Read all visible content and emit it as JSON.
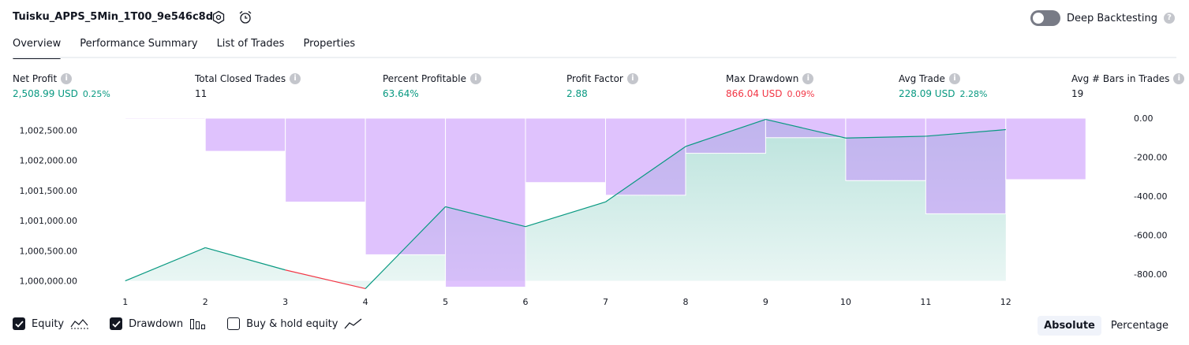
{
  "header": {
    "strategy_title": "Tuisku_APPS_5Min_1T00_9e546c8d",
    "settings_icon": "gear-icon",
    "alert_icon": "alarm-clock-plus-icon",
    "deep_backtesting_label": "Deep Backtesting",
    "deep_backtesting_enabled": false,
    "help_icon": "question-icon"
  },
  "tabs": [
    {
      "label": "Overview",
      "active": true
    },
    {
      "label": "Performance Summary",
      "active": false
    },
    {
      "label": "List of Trades",
      "active": false
    },
    {
      "label": "Properties",
      "active": false
    }
  ],
  "metrics": [
    {
      "label": "Net Profit",
      "value": "2,508.99 USD",
      "percent": "0.25%",
      "color": "#089981"
    },
    {
      "label": "Total Closed Trades",
      "value": "11",
      "percent": "",
      "color": "#131722"
    },
    {
      "label": "Percent Profitable",
      "value": "63.64%",
      "percent": "",
      "color": "#089981"
    },
    {
      "label": "Profit Factor",
      "value": "2.88",
      "percent": "",
      "color": "#089981"
    },
    {
      "label": "Max Drawdown",
      "value": "866.04 USD",
      "percent": "0.09%",
      "color": "#f23645"
    },
    {
      "label": "Avg Trade",
      "value": "228.09 USD",
      "percent": "2.28%",
      "color": "#089981"
    },
    {
      "label": "Avg # Bars in Trades",
      "value": "19",
      "percent": "",
      "color": "#131722"
    }
  ],
  "chart_data": {
    "type": "line",
    "x": [
      1,
      2,
      3,
      4,
      5,
      6,
      7,
      8,
      9,
      10,
      11,
      12
    ],
    "series": [
      {
        "name": "Equity",
        "axis": "left",
        "type": "area",
        "values": [
          1000000,
          1000550,
          1000180,
          999870,
          1001230,
          1000900,
          1001310,
          1002230,
          1002680,
          1002370,
          1002400,
          1002510
        ],
        "color": "#089981",
        "negative_color": "#f23645"
      },
      {
        "name": "Drawdown",
        "axis": "right",
        "type": "bar",
        "bar_x": [
          1.5,
          2.5,
          3.5,
          4.5,
          5.5,
          6.5,
          7.5,
          8.5,
          9.5,
          10.5,
          11.5,
          12.5
        ],
        "values": [
          -5,
          -170,
          -430,
          -700,
          -866,
          -330,
          -395,
          -180,
          -100,
          -320,
          -490,
          -315
        ],
        "color": "#c590fc"
      }
    ],
    "left_axis": {
      "ticks": [
        "1,000,000.00",
        "1,000,500.00",
        "1,001,000.00",
        "1,001,500.00",
        "1,002,000.00",
        "1,002,500.00"
      ],
      "tick_values": [
        1000000,
        1000500,
        1001000,
        1001500,
        1002000,
        1002500
      ],
      "ylim": [
        999850,
        1002700
      ]
    },
    "right_axis": {
      "ticks": [
        "0.00",
        "-200.00",
        "-400.00",
        "-600.00",
        "-800.00"
      ],
      "tick_values": [
        0,
        -200,
        -400,
        -600,
        -800
      ],
      "ylim": [
        -880,
        0
      ]
    },
    "xlim": [
      0.5,
      13.5
    ],
    "grid": false
  },
  "legend": {
    "items": [
      {
        "label": "Equity",
        "checked": true,
        "icon": "equity-line-icon"
      },
      {
        "label": "Drawdown",
        "checked": true,
        "icon": "drawdown-bars-icon"
      },
      {
        "label": "Buy & hold equity",
        "checked": false,
        "icon": "buy-hold-line-icon"
      }
    ]
  },
  "view_buttons": [
    {
      "label": "Absolute",
      "active": true
    },
    {
      "label": "Percentage",
      "active": false
    }
  ]
}
